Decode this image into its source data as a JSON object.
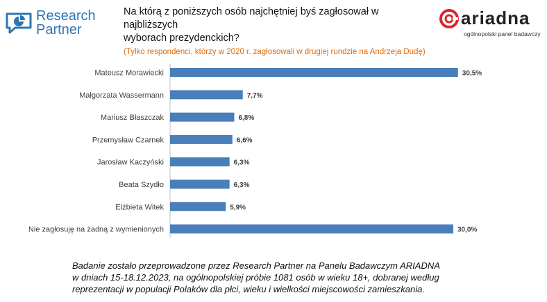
{
  "logos": {
    "left_text": [
      "Research",
      "Partner"
    ],
    "right_word": "ariadna",
    "right_tagline": "ogólnopolski panel badawczy"
  },
  "question": {
    "title_lines": [
      "Na którą z poniższych osób najchętniej byś zagłosował w najbliższych",
      "wyborach prezydenckich?"
    ],
    "subtitle": "(Tylko respondenci, którzy w 2020 r. zagłosowali w drugiej rundzie na Andrzeja Dudę)"
  },
  "chart_data": {
    "type": "bar",
    "orientation": "horizontal",
    "categories": [
      "Mateusz Morawiecki",
      "Małgorzata Wassermann",
      "Mariusz Błaszczak",
      "Przemysław Czarnek",
      "Jarosław Kaczyński",
      "Beata Szydło",
      "Elżbieta Witek",
      "Nie zagłosuję na żadną z wymienionych"
    ],
    "values": [
      30.5,
      7.7,
      6.8,
      6.6,
      6.3,
      6.3,
      5.9,
      30.0
    ],
    "value_labels": [
      "30,5%",
      "7,7%",
      "6,8%",
      "6,6%",
      "6,3%",
      "6,3%",
      "5,9%",
      "30,0%"
    ],
    "bar_color": "#4a7ebb",
    "grid": false,
    "legend": "none"
  },
  "footer": {
    "lines": [
      "Badanie zostało przeprowadzone przez Research Partner na Panelu Badawczym ARIADNA",
      "w dniach 15-18.12.2023, na ogólnopolskiej próbie 1081 osób w wieku 18+, dobranej według",
      "reprezentacji w populacji Polaków dla płci, wieku i wielkości miejscowości zamieszkania."
    ]
  },
  "colors": {
    "brand_blue": "#2e75b6",
    "subtitle_orange": "#e46c0a",
    "ariadna_red": "#d9262c"
  }
}
